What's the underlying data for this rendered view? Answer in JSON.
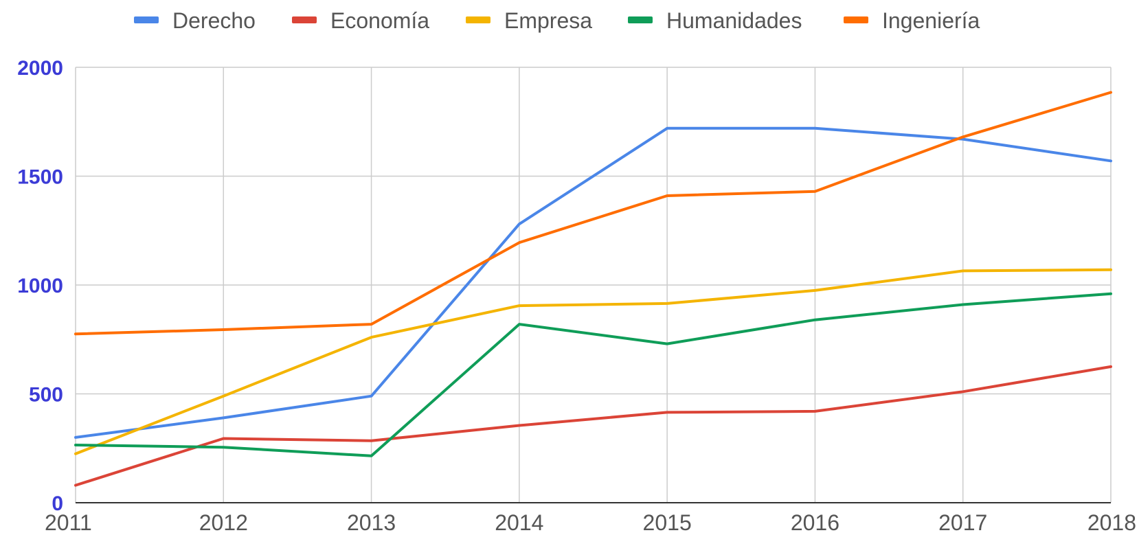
{
  "chart_data": {
    "type": "line",
    "title": "",
    "xlabel": "",
    "ylabel": "",
    "x": [
      "2011",
      "2012",
      "2013",
      "2014",
      "2015",
      "2016",
      "2017",
      "2018"
    ],
    "yticks": [
      "0",
      "500",
      "1000",
      "1500",
      "2000"
    ],
    "ylim": [
      0,
      2000
    ],
    "grid": true,
    "legend_position": "top",
    "series": [
      {
        "name": "Derecho",
        "color": "#4a86e8",
        "values": [
          300,
          390,
          490,
          1280,
          1720,
          1720,
          1670,
          1570
        ]
      },
      {
        "name": "Economía",
        "color": "#db4437",
        "values": [
          80,
          295,
          285,
          355,
          415,
          420,
          510,
          625
        ]
      },
      {
        "name": "Empresa",
        "color": "#f4b400",
        "values": [
          225,
          490,
          760,
          905,
          915,
          975,
          1065,
          1070
        ]
      },
      {
        "name": "Humanidades",
        "color": "#0f9d58",
        "values": [
          265,
          255,
          215,
          820,
          730,
          840,
          910,
          960
        ]
      },
      {
        "name": "Ingeniería",
        "color": "#ff6d00",
        "values": [
          775,
          795,
          820,
          1195,
          1410,
          1430,
          1680,
          1885
        ]
      }
    ]
  }
}
